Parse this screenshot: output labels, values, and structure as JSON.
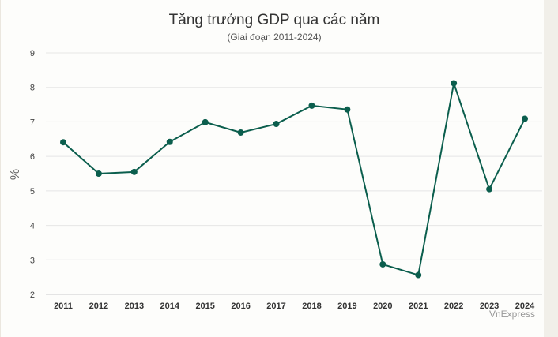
{
  "chart_data": {
    "type": "line",
    "title": "Tăng trưởng GDP qua các năm",
    "subtitle": "(Giai đoạn 2011-2024)",
    "ylabel": "%",
    "xlabel": "",
    "ylim": [
      2,
      9
    ],
    "yticks": [
      2,
      3,
      4,
      5,
      6,
      7,
      8,
      9
    ],
    "grid": true,
    "legend": "none",
    "categories": [
      "2011",
      "2012",
      "2013",
      "2014",
      "2015",
      "2016",
      "2017",
      "2018",
      "2019",
      "2020",
      "2021",
      "2022",
      "2023",
      "2024"
    ],
    "series": [
      {
        "values": [
          6.41,
          5.5,
          5.55,
          6.42,
          6.99,
          6.69,
          6.94,
          7.47,
          7.36,
          2.87,
          2.56,
          8.12,
          5.05,
          7.09
        ],
        "color": "#0b5e4d"
      }
    ]
  },
  "credit": "VnExpress",
  "colors": {
    "line": "#0b5e4d",
    "grid": "#e6e6e6",
    "axis": "#cccccc"
  }
}
